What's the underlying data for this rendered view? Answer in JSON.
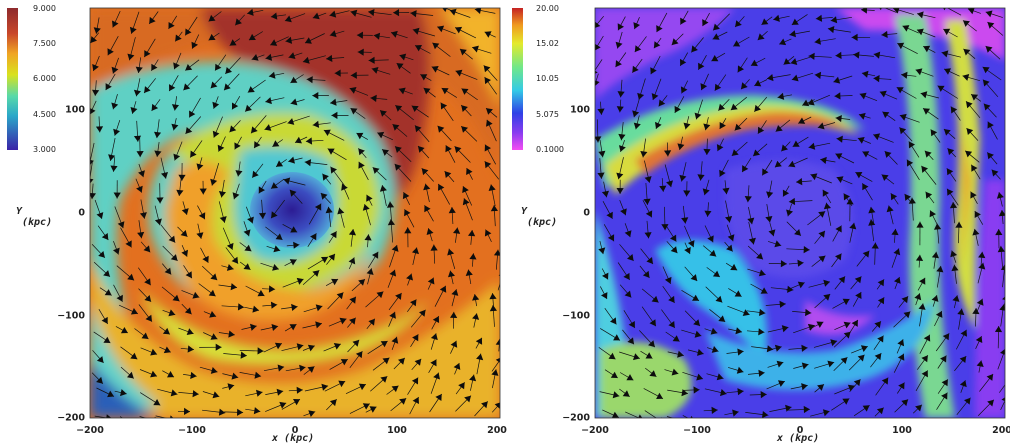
{
  "panels": [
    {
      "colorbar_labels": [
        "9.000",
        "7.500",
        "6.000",
        "4.500",
        "3.000"
      ],
      "y_ticks": [
        "100",
        "0",
        "−100",
        "−200"
      ],
      "x_ticks": [
        "−200",
        "−100",
        "0",
        "100",
        "200"
      ],
      "y_axis_title": [
        "Y",
        "(kpc)"
      ],
      "x_axis_title": "x (kpc)",
      "colormap": [
        "#3a22a8",
        "#1a5ec0",
        "#2fb9c7",
        "#6fe0c9",
        "#a8df3a",
        "#e6e51a",
        "#f2a524",
        "#e46a1c",
        "#b7342a",
        "#8e2a2d"
      ]
    },
    {
      "colorbar_labels": [
        "20.00",
        "15.02",
        "10.05",
        "5.075",
        "0.1000"
      ],
      "y_ticks": [
        "100",
        "0",
        "−100",
        "−200"
      ],
      "x_ticks": [
        "−200",
        "−100",
        "0",
        "100",
        "200"
      ],
      "y_axis_title": [
        "Y",
        "(kpc)"
      ],
      "x_axis_title": "x (kpc)",
      "colormap": [
        "#f03cf0",
        "#8a3cf5",
        "#3a32ea",
        "#2a7df0",
        "#40e0e0",
        "#7ee97c",
        "#d8ea30",
        "#f0a020",
        "#e04a20",
        "#c02020"
      ]
    }
  ]
}
